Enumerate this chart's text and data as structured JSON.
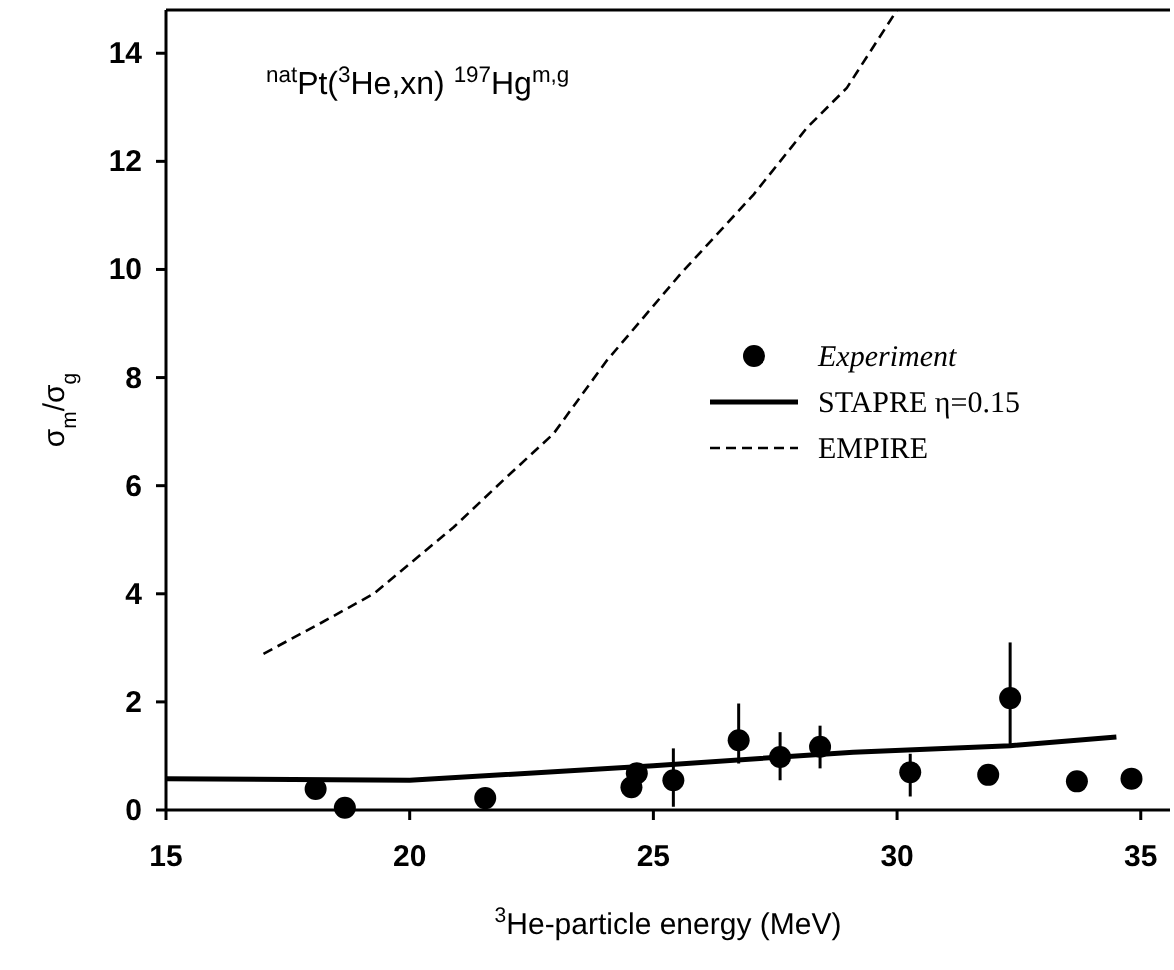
{
  "chart_data": {
    "type": "line",
    "annotations": [
      "$^{nat}$Pt($^{3}$He,xn) $^{197}$Hg$^{m,g}$"
    ],
    "xlabel": "$^{3}$He-particle energy (MeV)",
    "ylabel": "σ$_{m}$/σ$_{g}$",
    "xlim": [
      15,
      35.6
    ],
    "xticks": [
      15,
      20,
      25,
      30,
      35
    ],
    "ylim": [
      0,
      14.8
    ],
    "yticks": [
      0,
      2,
      4,
      6,
      8,
      10,
      12,
      14
    ],
    "grid": false,
    "legend": "right",
    "series": [
      {
        "name": "Experiment",
        "type": "scatter",
        "marker": "circle",
        "color": "#000000",
        "x": [
          18.07,
          18.67,
          21.55,
          24.55,
          24.66,
          25.41,
          26.75,
          27.6,
          28.42,
          30.27,
          31.87,
          32.32,
          33.69,
          34.81
        ],
        "values": [
          0.39,
          0.04,
          0.22,
          0.42,
          0.68,
          0.55,
          1.29,
          0.98,
          1.17,
          0.7,
          0.65,
          2.07,
          0.53,
          0.58
        ],
        "errors": [
          null,
          null,
          null,
          null,
          null,
          [
            0.06,
            1.14
          ],
          [
            0.86,
            1.97
          ],
          [
            0.55,
            1.44
          ],
          [
            0.77,
            1.56
          ],
          [
            0.25,
            1.04
          ],
          null,
          [
            1.18,
            3.1
          ],
          null,
          null
        ]
      },
      {
        "name": "STAPRE  η=0.15",
        "line_style": "solid",
        "color": "#000000",
        "x": [
          15,
          20,
          25,
          29.1,
          32.32,
          34.5
        ],
        "values": [
          0.58,
          0.55,
          0.82,
          1.07,
          1.19,
          1.35
        ]
      },
      {
        "name": "EMPIRE",
        "line_style": "dashed",
        "color": "#000000",
        "x": [
          17.0,
          18.16,
          19.26,
          20.9,
          21.99,
          22.95,
          24.04,
          25.55,
          27.06,
          28.15,
          28.97,
          30.0
        ],
        "values": [
          2.89,
          3.45,
          4.0,
          5.23,
          6.16,
          6.96,
          8.31,
          9.91,
          11.39,
          12.62,
          13.36,
          14.8
        ]
      }
    ]
  }
}
